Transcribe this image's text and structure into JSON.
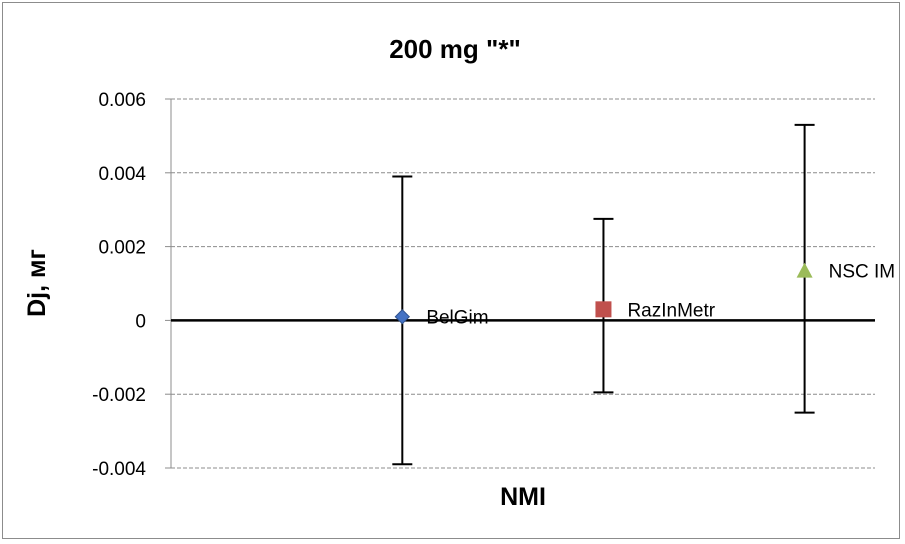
{
  "chart_data": {
    "type": "scatter",
    "title": "200 mg \"*\"",
    "xlabel": "NMI",
    "ylabel": "Dj, мг",
    "ylim": [
      -0.004,
      0.006
    ],
    "yticks": [
      0.006,
      0.004,
      0.002,
      0,
      -0.002,
      -0.004
    ],
    "ytick_labels": [
      "0.006",
      "0.004",
      "0.002",
      "0",
      "-0.002",
      "-0.004"
    ],
    "grid": "horizontal-dashed",
    "legend": "none",
    "x": [
      1,
      2,
      3
    ],
    "series": [
      {
        "name": "BelGim",
        "x": 1,
        "y": 0.0001,
        "err_low": -0.0039,
        "err_high": 0.0039,
        "marker": "diamond",
        "color": "#4472c4"
      },
      {
        "name": "RazInMetr",
        "x": 2,
        "y": 0.0003,
        "err_low": -0.00195,
        "err_high": 0.00275,
        "marker": "square",
        "color": "#c0504d"
      },
      {
        "name": "NSC IM",
        "x": 3,
        "y": 0.00135,
        "err_low": -0.0025,
        "err_high": 0.0053,
        "marker": "triangle",
        "color": "#9bbb59"
      }
    ]
  }
}
